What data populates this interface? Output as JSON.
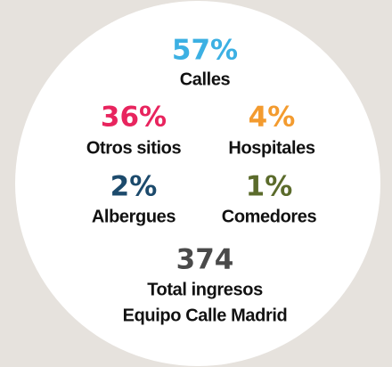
{
  "stats": [
    {
      "value": "57%",
      "label": "Calles",
      "color": "#3cb0e3"
    },
    {
      "value": "36%",
      "label": "Otros sitios",
      "color": "#e8245e"
    },
    {
      "value": "4%",
      "label": "Hospitales",
      "color": "#f39b2f"
    },
    {
      "value": "2%",
      "label": "Albergues",
      "color": "#1c4a6c"
    },
    {
      "value": "1%",
      "label": "Comedores",
      "color": "#5b6b2b"
    }
  ],
  "total": {
    "value": "374",
    "label_lines": [
      "Total ingresos",
      "Equipo Calle Madrid"
    ],
    "color": "#4a4a4a"
  }
}
